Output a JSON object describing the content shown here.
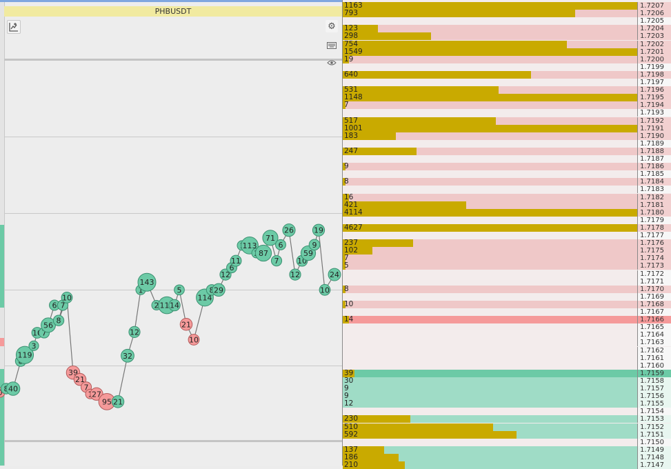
{
  "symbol": "PHBUSDT",
  "toolbar": {
    "chart_tool_icon": "chart-add-icon",
    "settings_icon": "gear-icon",
    "keyboard_icon": "keyboard-icon",
    "eye_icon": "eye-icon"
  },
  "colors": {
    "buy": "#6ccaa6",
    "sell": "#f59a9a",
    "volume": "#c9aa00",
    "ask_bg": "#efc8c8",
    "bid_bg": "#9fdcc6",
    "title_bar": "#f1eaa0"
  },
  "chart_data": {
    "type": "scatter",
    "bubbles": [
      {
        "label": "0",
        "side": "sell",
        "x": 0,
        "y": 1.71565
      },
      {
        "label": "8",
        "side": "buy",
        "x": 9,
        "y": 1.7157
      },
      {
        "label": "40",
        "side": "buy",
        "x": 19,
        "y": 1.7157
      },
      {
        "label": "8",
        "side": "buy",
        "x": 30,
        "y": 1.71606
      },
      {
        "label": "119",
        "side": "buy",
        "x": 36,
        "y": 1.71614
      },
      {
        "label": "3",
        "side": "buy",
        "x": 49,
        "y": 1.71626
      },
      {
        "label": "10",
        "side": "buy",
        "x": 54,
        "y": 1.71643
      },
      {
        "label": "7",
        "side": "buy",
        "x": 64,
        "y": 1.71643
      },
      {
        "label": "56",
        "side": "buy",
        "x": 70,
        "y": 1.71653
      },
      {
        "label": "6",
        "side": "buy",
        "x": 79,
        "y": 1.71679
      },
      {
        "label": "7",
        "side": "buy",
        "x": 91,
        "y": 1.71679
      },
      {
        "label": "8",
        "side": "buy",
        "x": 85,
        "y": 1.71659
      },
      {
        "label": "10",
        "side": "buy",
        "x": 97,
        "y": 1.71689
      },
      {
        "label": "39",
        "side": "sell",
        "x": 106,
        "y": 1.71591
      },
      {
        "label": "21",
        "side": "sell",
        "x": 116,
        "y": 1.71582
      },
      {
        "label": "7",
        "side": "sell",
        "x": 125,
        "y": 1.71572
      },
      {
        "label": "1",
        "side": "sell",
        "x": 131,
        "y": 1.71563
      },
      {
        "label": "27",
        "side": "sell",
        "x": 140,
        "y": 1.71563
      },
      {
        "label": "95",
        "side": "sell",
        "x": 155,
        "y": 1.71553
      },
      {
        "label": "21",
        "side": "buy",
        "x": 171,
        "y": 1.71553
      },
      {
        "label": "32",
        "side": "buy",
        "x": 185,
        "y": 1.71613
      },
      {
        "label": "12",
        "side": "buy",
        "x": 195,
        "y": 1.71644
      },
      {
        "label": "1",
        "side": "buy",
        "x": 204,
        "y": 1.71699
      },
      {
        "label": "143",
        "side": "buy",
        "x": 213,
        "y": 1.71709
      },
      {
        "label": "2",
        "side": "buy",
        "x": 227,
        "y": 1.71679
      },
      {
        "label": "111",
        "side": "buy",
        "x": 242,
        "y": 1.71679
      },
      {
        "label": "14",
        "side": "buy",
        "x": 253,
        "y": 1.71679
      },
      {
        "label": "5",
        "side": "buy",
        "x": 260,
        "y": 1.71699
      },
      {
        "label": "21",
        "side": "sell",
        "x": 270,
        "y": 1.71654
      },
      {
        "label": "10",
        "side": "sell",
        "x": 281,
        "y": 1.71634
      },
      {
        "label": "114",
        "side": "buy",
        "x": 297,
        "y": 1.71689
      },
      {
        "label": "8",
        "side": "buy",
        "x": 307,
        "y": 1.71699
      },
      {
        "label": "29",
        "side": "buy",
        "x": 317,
        "y": 1.71699
      },
      {
        "label": "12",
        "side": "buy",
        "x": 327,
        "y": 1.71719
      },
      {
        "label": "6",
        "side": "buy",
        "x": 336,
        "y": 1.71728
      },
      {
        "label": "11",
        "side": "buy",
        "x": 342,
        "y": 1.71737
      },
      {
        "label": "1",
        "side": "buy",
        "x": 351,
        "y": 1.71757
      },
      {
        "label": "113",
        "side": "buy",
        "x": 362,
        "y": 1.71757
      },
      {
        "label": "2",
        "side": "buy",
        "x": 372,
        "y": 1.71747
      },
      {
        "label": "87",
        "side": "buy",
        "x": 382,
        "y": 1.71747
      },
      {
        "label": "71",
        "side": "buy",
        "x": 392,
        "y": 1.71767
      },
      {
        "label": "7",
        "side": "buy",
        "x": 401,
        "y": 1.71737
      },
      {
        "label": "6",
        "side": "buy",
        "x": 407,
        "y": 1.71758
      },
      {
        "label": "26",
        "side": "buy",
        "x": 419,
        "y": 1.71777
      },
      {
        "label": "12",
        "side": "buy",
        "x": 428,
        "y": 1.71719
      },
      {
        "label": "10",
        "side": "buy",
        "x": 438,
        "y": 1.71737
      },
      {
        "label": "59",
        "side": "buy",
        "x": 447,
        "y": 1.71747
      },
      {
        "label": "9",
        "side": "buy",
        "x": 456,
        "y": 1.71758
      },
      {
        "label": "19",
        "side": "buy",
        "x": 462,
        "y": 1.71777
      },
      {
        "label": "10",
        "side": "buy",
        "x": 471,
        "y": 1.71699
      },
      {
        "label": "24",
        "side": "buy",
        "x": 485,
        "y": 1.71719
      }
    ]
  },
  "order_book": {
    "rows": [
      {
        "price": "1.7207",
        "qty": "1163",
        "vol": 1.0,
        "side": "ask"
      },
      {
        "price": "1.7206",
        "qty": "793",
        "vol": 0.79,
        "side": "ask"
      },
      {
        "price": "1.7205",
        "qty": "",
        "vol": 0,
        "side": "empty"
      },
      {
        "price": "1.7204",
        "qty": "123",
        "vol": 0.12,
        "side": "ask"
      },
      {
        "price": "1.7203",
        "qty": "298",
        "vol": 0.3,
        "side": "ask"
      },
      {
        "price": "1.7202",
        "qty": "754",
        "vol": 0.76,
        "side": "ask"
      },
      {
        "price": "1.7201",
        "qty": "1549",
        "vol": 1.0,
        "side": "ask"
      },
      {
        "price": "1.7200",
        "qty": "19",
        "vol": 0.02,
        "side": "ask"
      },
      {
        "price": "1.7199",
        "qty": "",
        "vol": 0,
        "side": "empty"
      },
      {
        "price": "1.7198",
        "qty": "640",
        "vol": 0.64,
        "side": "ask"
      },
      {
        "price": "1.7197",
        "qty": "",
        "vol": 0,
        "side": "empty"
      },
      {
        "price": "1.7196",
        "qty": "531",
        "vol": 0.53,
        "side": "ask"
      },
      {
        "price": "1.7195",
        "qty": "1148",
        "vol": 1.0,
        "side": "ask"
      },
      {
        "price": "1.7194",
        "qty": "7",
        "vol": 0.01,
        "side": "ask"
      },
      {
        "price": "1.7193",
        "qty": "",
        "vol": 0,
        "side": "empty"
      },
      {
        "price": "1.7192",
        "qty": "517",
        "vol": 0.52,
        "side": "ask"
      },
      {
        "price": "1.7191",
        "qty": "1001",
        "vol": 1.0,
        "side": "ask"
      },
      {
        "price": "1.7190",
        "qty": "183",
        "vol": 0.18,
        "side": "ask"
      },
      {
        "price": "1.7189",
        "qty": "",
        "vol": 0,
        "side": "empty"
      },
      {
        "price": "1.7188",
        "qty": "247",
        "vol": 0.25,
        "side": "ask"
      },
      {
        "price": "1.7187",
        "qty": "",
        "vol": 0,
        "side": "empty"
      },
      {
        "price": "1.7186",
        "qty": "9",
        "vol": 0.01,
        "side": "ask"
      },
      {
        "price": "1.7185",
        "qty": "",
        "vol": 0,
        "side": "empty"
      },
      {
        "price": "1.7184",
        "qty": "8",
        "vol": 0.01,
        "side": "ask"
      },
      {
        "price": "1.7183",
        "qty": "",
        "vol": 0,
        "side": "empty"
      },
      {
        "price": "1.7182",
        "qty": "16",
        "vol": 0.02,
        "side": "ask"
      },
      {
        "price": "1.7181",
        "qty": "421",
        "vol": 0.42,
        "side": "ask"
      },
      {
        "price": "1.7180",
        "qty": "4114",
        "vol": 1.0,
        "side": "ask"
      },
      {
        "price": "1.7179",
        "qty": "",
        "vol": 0,
        "side": "empty"
      },
      {
        "price": "1.7178",
        "qty": "4627",
        "vol": 1.0,
        "side": "ask"
      },
      {
        "price": "1.7177",
        "qty": "",
        "vol": 0,
        "side": "empty"
      },
      {
        "price": "1.7176",
        "qty": "237",
        "vol": 0.24,
        "side": "ask"
      },
      {
        "price": "1.7175",
        "qty": "102",
        "vol": 0.1,
        "side": "ask"
      },
      {
        "price": "1.7174",
        "qty": "7",
        "vol": 0.01,
        "side": "ask"
      },
      {
        "price": "1.7173",
        "qty": "5",
        "vol": 0.01,
        "side": "ask"
      },
      {
        "price": "1.7172",
        "qty": "",
        "vol": 0,
        "side": "empty"
      },
      {
        "price": "1.7171",
        "qty": "",
        "vol": 0,
        "side": "empty"
      },
      {
        "price": "1.7170",
        "qty": "8",
        "vol": 0.01,
        "side": "ask"
      },
      {
        "price": "1.7169",
        "qty": "",
        "vol": 0,
        "side": "empty"
      },
      {
        "price": "1.7168",
        "qty": "10",
        "vol": 0.01,
        "side": "ask"
      },
      {
        "price": "1.7167",
        "qty": "",
        "vol": 0,
        "side": "empty"
      },
      {
        "price": "1.7166",
        "qty": "14",
        "vol": 0.02,
        "side": "best-ask"
      },
      {
        "price": "1.7165",
        "qty": "",
        "vol": 0,
        "side": "empty"
      },
      {
        "price": "1.7164",
        "qty": "",
        "vol": 0,
        "side": "empty"
      },
      {
        "price": "1.7163",
        "qty": "",
        "vol": 0,
        "side": "empty"
      },
      {
        "price": "1.7162",
        "qty": "",
        "vol": 0,
        "side": "empty"
      },
      {
        "price": "1.7161",
        "qty": "",
        "vol": 0,
        "side": "empty"
      },
      {
        "price": "1.7160",
        "qty": "",
        "vol": 0,
        "side": "empty"
      },
      {
        "price": "1.7159",
        "qty": "39",
        "vol": 0.04,
        "side": "best-bid"
      },
      {
        "price": "1.7158",
        "qty": "30",
        "vol": 0,
        "side": "bid"
      },
      {
        "price": "1.7157",
        "qty": "9",
        "vol": 0,
        "side": "bid"
      },
      {
        "price": "1.7156",
        "qty": "9",
        "vol": 0,
        "side": "bid"
      },
      {
        "price": "1.7155",
        "qty": "12",
        "vol": 0,
        "side": "bid"
      },
      {
        "price": "1.7154",
        "qty": "",
        "vol": 0,
        "side": "empty"
      },
      {
        "price": "1.7153",
        "qty": "230",
        "vol": 0.23,
        "side": "bid"
      },
      {
        "price": "1.7152",
        "qty": "510",
        "vol": 0.51,
        "side": "bid"
      },
      {
        "price": "1.7151",
        "qty": "592",
        "vol": 0.59,
        "side": "bid"
      },
      {
        "price": "1.7150",
        "qty": "",
        "vol": 0,
        "side": "empty"
      },
      {
        "price": "1.7149",
        "qty": "137",
        "vol": 0.14,
        "side": "bid"
      },
      {
        "price": "1.7148",
        "qty": "186",
        "vol": 0.19,
        "side": "bid"
      },
      {
        "price": "1.7147",
        "qty": "210",
        "vol": 0.21,
        "side": "bid"
      }
    ]
  }
}
